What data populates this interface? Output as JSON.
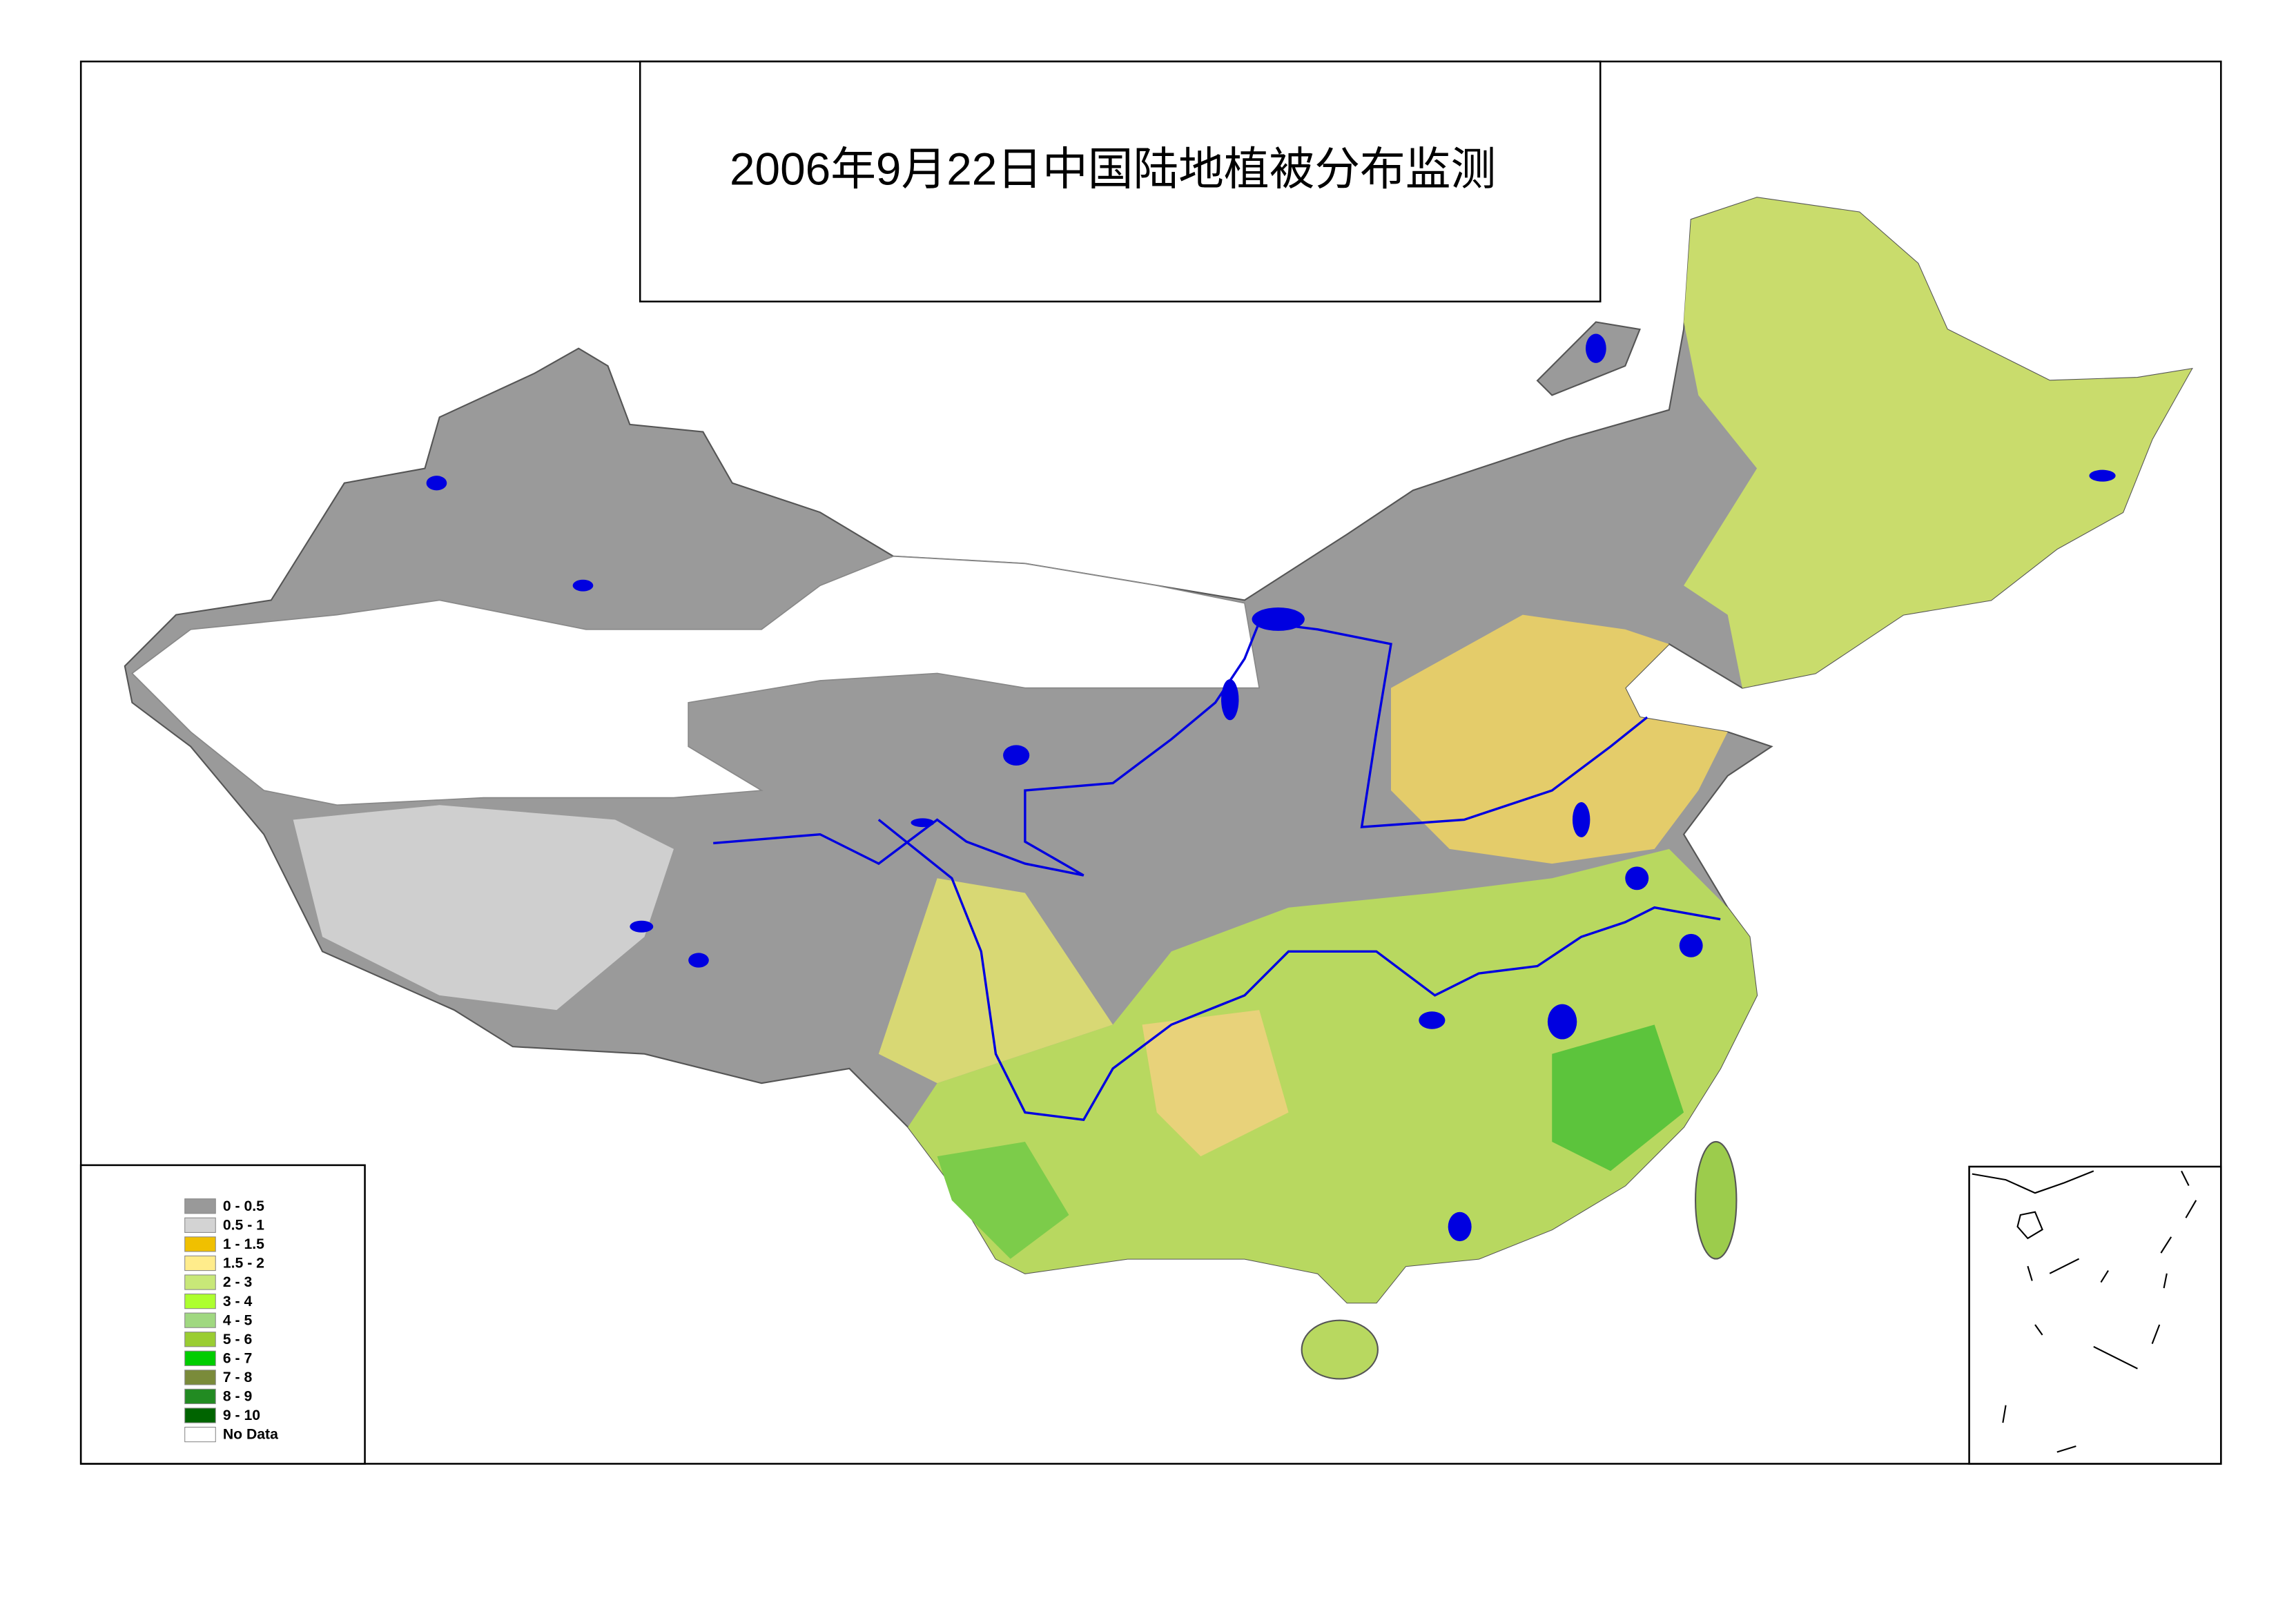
{
  "title": "2006年9月22日中国陆地植被分布监测",
  "legend": [
    {
      "label": "0 - 0.5",
      "color": "#999999"
    },
    {
      "label": "0.5 - 1",
      "color": "#d3d3d3"
    },
    {
      "label": "1 - 1.5",
      "color": "#f0c000"
    },
    {
      "label": "1.5 - 2",
      "color": "#ffec8b"
    },
    {
      "label": "2 - 3",
      "color": "#c8e878"
    },
    {
      "label": "3 - 4",
      "color": "#adff2f"
    },
    {
      "label": "4 - 5",
      "color": "#a0d880"
    },
    {
      "label": "5 - 6",
      "color": "#9acd32"
    },
    {
      "label": "6 - 7",
      "color": "#00cd00"
    },
    {
      "label": "7 - 8",
      "color": "#7a8b3a"
    },
    {
      "label": "8 - 9",
      "color": "#228b22"
    },
    {
      "label": "9 - 10",
      "color": "#006400"
    },
    {
      "label": "No Data",
      "color": "#ffffff"
    }
  ]
}
